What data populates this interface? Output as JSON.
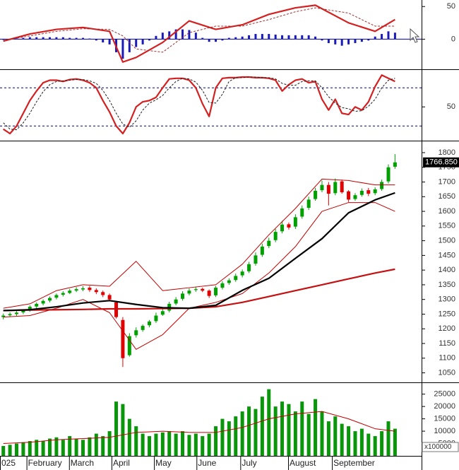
{
  "chart_data": [
    {
      "type": "macd",
      "xlim": [
        -0.5,
        63
      ],
      "ylim": [
        -45,
        60
      ],
      "yticks": [
        0,
        50
      ],
      "histogram": {
        "color": "#1a1ab8",
        "values": [
          -1,
          0,
          1,
          2,
          3,
          3,
          3,
          3,
          3,
          3,
          2,
          2,
          2,
          1,
          -2,
          -5,
          -8,
          -20,
          -30,
          -20,
          -12,
          -8,
          -2,
          5,
          10,
          12,
          15,
          15,
          14,
          10,
          2,
          -4,
          -4,
          -2,
          2,
          3,
          4,
          6,
          8,
          8,
          8,
          7,
          6,
          6,
          6,
          6,
          6,
          4,
          -2,
          -6,
          -8,
          -10,
          -8,
          -6,
          -4,
          -2,
          4,
          8,
          12,
          10
        ]
      },
      "series": [
        {
          "color": "#d42020",
          "style": "thick",
          "x": [
            0,
            4,
            8,
            12,
            16,
            18,
            20,
            24,
            28,
            32,
            36,
            40,
            44,
            47,
            52,
            56,
            59
          ],
          "values": [
            -3,
            8,
            15,
            18,
            12,
            -35,
            -28,
            -5,
            28,
            15,
            22,
            38,
            48,
            52,
            25,
            12,
            30
          ]
        },
        {
          "color": "#a03030",
          "style": "dashed",
          "x": [
            0,
            4,
            8,
            12,
            16,
            18,
            20,
            24,
            28,
            32,
            36,
            40,
            44,
            47,
            52,
            56,
            59
          ],
          "values": [
            -2,
            5,
            12,
            16,
            15,
            5,
            -15,
            -20,
            10,
            20,
            20,
            30,
            42,
            48,
            40,
            20,
            20
          ]
        }
      ]
    },
    {
      "type": "stochastic",
      "xlim": [
        -0.5,
        63
      ],
      "ylim": [
        -2,
        107
      ],
      "yticks": [
        50
      ],
      "levels": [
        20,
        80
      ],
      "level_color": "#000080",
      "series": [
        {
          "color": "#d42020",
          "style": "thick",
          "values": [
            15,
            8,
            20,
            40,
            60,
            75,
            88,
            92,
            92,
            90,
            93,
            94,
            92,
            88,
            80,
            60,
            42,
            20,
            8,
            25,
            50,
            58,
            60,
            65,
            80,
            94,
            95,
            95,
            92,
            80,
            55,
            35,
            80,
            95,
            96,
            96,
            97,
            97,
            96,
            96,
            95,
            92,
            75,
            85,
            92,
            94,
            88,
            90,
            62,
            45,
            62,
            40,
            38,
            50,
            45,
            58,
            82,
            100,
            95,
            90
          ]
        },
        {
          "color": "#202020",
          "style": "dashed",
          "values": [
            25,
            15,
            14,
            25,
            40,
            58,
            74,
            85,
            90,
            91,
            92,
            93,
            93,
            91,
            87,
            76,
            60,
            40,
            23,
            18,
            28,
            45,
            56,
            61,
            68,
            80,
            90,
            95,
            94,
            89,
            76,
            57,
            56,
            70,
            90,
            96,
            96,
            97,
            97,
            96,
            96,
            94,
            87,
            84,
            84,
            90,
            91,
            91,
            80,
            66,
            56,
            49,
            47,
            43,
            44,
            51,
            62,
            80,
            92,
            95
          ]
        }
      ]
    },
    {
      "type": "candlestick",
      "xlim": [
        -0.5,
        63
      ],
      "ylim": [
        1020,
        1836
      ],
      "yticks": [
        1050,
        1100,
        1150,
        1200,
        1250,
        1300,
        1350,
        1400,
        1450,
        1500,
        1550,
        1600,
        1650,
        1700,
        1750,
        1800
      ],
      "up_color": "#00a000",
      "down_color": "#e00000",
      "open": [
        1240,
        1246,
        1250,
        1256,
        1262,
        1276,
        1286,
        1296,
        1306,
        1316,
        1322,
        1330,
        1334,
        1340,
        1332,
        1325,
        1315,
        1290,
        1230,
        1110,
        1178,
        1196,
        1212,
        1226,
        1248,
        1262,
        1286,
        1302,
        1320,
        1332,
        1336,
        1330,
        1314,
        1340,
        1356,
        1366,
        1382,
        1396,
        1422,
        1452,
        1482,
        1502,
        1532,
        1556,
        1548,
        1582,
        1612,
        1642,
        1672,
        1690,
        1662,
        1702,
        1668,
        1642,
        1656,
        1672,
        1662,
        1676,
        1702,
        1752
      ],
      "high": [
        1252,
        1256,
        1260,
        1266,
        1280,
        1290,
        1300,
        1310,
        1320,
        1328,
        1336,
        1342,
        1345,
        1346,
        1338,
        1330,
        1320,
        1295,
        1240,
        1185,
        1205,
        1215,
        1230,
        1255,
        1268,
        1292,
        1308,
        1328,
        1338,
        1342,
        1340,
        1334,
        1346,
        1362,
        1372,
        1388,
        1402,
        1428,
        1460,
        1490,
        1510,
        1540,
        1568,
        1562,
        1590,
        1620,
        1650,
        1680,
        1705,
        1700,
        1712,
        1708,
        1672,
        1662,
        1678,
        1680,
        1682,
        1708,
        1760,
        1795
      ],
      "low": [
        1232,
        1240,
        1244,
        1250,
        1258,
        1270,
        1280,
        1290,
        1300,
        1310,
        1318,
        1325,
        1328,
        1326,
        1318,
        1308,
        1295,
        1235,
        1070,
        1105,
        1170,
        1190,
        1205,
        1220,
        1244,
        1256,
        1280,
        1296,
        1314,
        1326,
        1325,
        1305,
        1308,
        1334,
        1350,
        1360,
        1375,
        1390,
        1415,
        1445,
        1475,
        1495,
        1525,
        1538,
        1540,
        1575,
        1605,
        1636,
        1665,
        1620,
        1655,
        1660,
        1632,
        1636,
        1650,
        1652,
        1655,
        1670,
        1695,
        1745
      ],
      "close": [
        1245,
        1250,
        1255,
        1262,
        1275,
        1285,
        1295,
        1305,
        1315,
        1322,
        1330,
        1335,
        1338,
        1332,
        1325,
        1315,
        1300,
        1240,
        1100,
        1175,
        1195,
        1210,
        1225,
        1245,
        1260,
        1285,
        1300,
        1320,
        1330,
        1335,
        1330,
        1312,
        1340,
        1355,
        1365,
        1380,
        1395,
        1420,
        1450,
        1480,
        1500,
        1530,
        1555,
        1545,
        1580,
        1610,
        1640,
        1670,
        1690,
        1660,
        1700,
        1665,
        1640,
        1655,
        1670,
        1660,
        1675,
        1700,
        1750,
        1766.85
      ],
      "series": [
        {
          "color": "#c00000",
          "style": "thin",
          "x": [
            0,
            4,
            8,
            12,
            16,
            20,
            24,
            28,
            32,
            36,
            40,
            44,
            48,
            52,
            56,
            59
          ],
          "values": [
            1270,
            1285,
            1330,
            1350,
            1345,
            1430,
            1330,
            1340,
            1350,
            1420,
            1520,
            1610,
            1710,
            1705,
            1690,
            1690
          ]
        },
        {
          "color": "#c00000",
          "style": "thin",
          "x": [
            0,
            4,
            8,
            12,
            16,
            20,
            24,
            28,
            32,
            36,
            40,
            44,
            48,
            52,
            56,
            59
          ],
          "values": [
            1240,
            1245,
            1270,
            1300,
            1255,
            1130,
            1180,
            1270,
            1290,
            1320,
            1390,
            1480,
            1600,
            1630,
            1630,
            1600
          ]
        },
        {
          "color": "#c41010",
          "style": "thick",
          "x": [
            0,
            4,
            8,
            12,
            16,
            20,
            24,
            28,
            32,
            36,
            40,
            44,
            48,
            52,
            56,
            59
          ],
          "values": [
            1262,
            1264,
            1265,
            1266,
            1268,
            1268,
            1269,
            1270,
            1275,
            1290,
            1310,
            1330,
            1350,
            1370,
            1390,
            1403
          ]
        },
        {
          "color": "#000000",
          "style": "thick",
          "x": [
            0,
            4,
            8,
            12,
            16,
            20,
            24,
            28,
            32,
            36,
            40,
            44,
            48,
            52,
            56,
            59
          ],
          "values": [
            1262,
            1265,
            1275,
            1288,
            1296,
            1283,
            1272,
            1270,
            1280,
            1331,
            1372,
            1440,
            1507,
            1595,
            1639,
            1663
          ]
        }
      ],
      "last_price": {
        "value": 1766.85,
        "label": "1766.850"
      }
    },
    {
      "type": "bar",
      "xlim": [
        -0.5,
        63
      ],
      "ylim": [
        0,
        29200
      ],
      "yticks": [
        5000,
        10000,
        15000,
        20000,
        25000
      ],
      "color": "#0a960a",
      "unit_label": "x100000",
      "values": [
        4000,
        4500,
        5000,
        5500,
        6000,
        6500,
        6000,
        7000,
        7500,
        6500,
        8000,
        7000,
        6500,
        7500,
        9000,
        8000,
        10000,
        22000,
        21000,
        15000,
        12000,
        9000,
        8000,
        9000,
        9500,
        10000,
        9000,
        10000,
        8500,
        9000,
        8000,
        9000,
        12000,
        15000,
        14000,
        16000,
        18000,
        20000,
        19000,
        24000,
        27000,
        20000,
        22000,
        21000,
        18000,
        22000,
        17000,
        23000,
        18000,
        14000,
        16000,
        13000,
        12000,
        10000,
        11000,
        9000,
        8000,
        10000,
        14000,
        11000
      ],
      "series": [
        {
          "color": "#c00000",
          "style": "thin",
          "x": [
            0,
            4,
            8,
            12,
            16,
            20,
            24,
            28,
            32,
            36,
            40,
            44,
            48,
            52,
            56,
            59
          ],
          "values": [
            5000,
            5500,
            6500,
            7000,
            7500,
            9500,
            10000,
            9500,
            9500,
            11500,
            15000,
            17000,
            18000,
            15000,
            11000,
            10000
          ]
        }
      ],
      "xticks": [
        {
          "value": -0.5,
          "label": "025"
        },
        {
          "value": 3.5,
          "label": "February"
        },
        {
          "value": 9.9,
          "label": "March"
        },
        {
          "value": 16.3,
          "label": "April"
        },
        {
          "value": 22.7,
          "label": "May"
        },
        {
          "value": 29.1,
          "label": "June"
        },
        {
          "value": 35.7,
          "label": "July"
        },
        {
          "value": 42.9,
          "label": "August"
        },
        {
          "value": 49.5,
          "label": "September"
        }
      ]
    }
  ]
}
